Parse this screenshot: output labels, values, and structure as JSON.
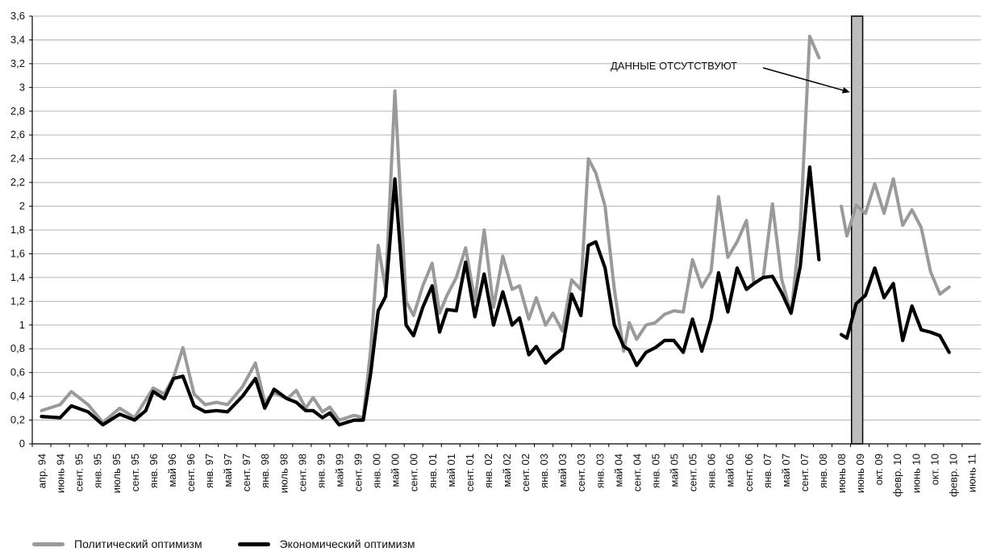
{
  "chart_data": {
    "type": "line",
    "title": "",
    "xlabel": "",
    "ylabel": "",
    "ylim": [
      0,
      3.6
    ],
    "yticks": [
      "0",
      "0,2",
      "0,4",
      "0,6",
      "0,8",
      "1",
      "1,2",
      "1,4",
      "1,6",
      "1,8",
      "2",
      "2,2",
      "2,4",
      "2,6",
      "2,8",
      "3",
      "3,2",
      "3,4",
      "3,6"
    ],
    "xticks": [
      "апр. 94",
      "июнь 94",
      "сент. 95",
      "янв. 95",
      "июль 95",
      "сент. 95",
      "янв. 96",
      "май 96",
      "сент. 96",
      "янв. 97",
      "май 97",
      "сент. 97",
      "янв. 98",
      "июль 98",
      "сент. 98",
      "янв. 99",
      "май 99",
      "сент. 99",
      "янв. 00",
      "май 00",
      "сент. 00",
      "янв. 01",
      "май 01",
      "сент. 01",
      "янв. 02",
      "май 02",
      "сент. 02",
      "янв. 03",
      "май 03",
      "сент. 03",
      "янв. 03",
      "май 04",
      "сент. 04",
      "янв. 05",
      "май 05",
      "сент. 05",
      "янв. 06",
      "май 06",
      "сент. 06",
      "янв. 07",
      "май 07",
      "сент. 07",
      "янв. 08",
      "июнь 08",
      "июнь 09",
      "окт. 09",
      "февр. 10",
      "июнь 10",
      "окт. 10",
      "февр. 10",
      "июнь 11"
    ],
    "grid": true,
    "legend_position": "bottom-left",
    "annotation": "ДАННЫЕ  ОТСУТСТВУЮТ",
    "gap_region": [
      "июнь 08",
      "июнь 09"
    ],
    "series": [
      {
        "name": "Политический оптимизм",
        "color": "#9a9a9a",
        "points": [
          [
            0,
            0.28
          ],
          [
            1,
            0.33
          ],
          [
            1.6,
            0.44
          ],
          [
            2.5,
            0.33
          ],
          [
            3.3,
            0.18
          ],
          [
            4.2,
            0.3
          ],
          [
            5,
            0.22
          ],
          [
            6,
            0.47
          ],
          [
            6.6,
            0.42
          ],
          [
            7.1,
            0.56
          ],
          [
            7.6,
            0.81
          ],
          [
            8.2,
            0.42
          ],
          [
            8.8,
            0.33
          ],
          [
            9.4,
            0.35
          ],
          [
            10,
            0.33
          ],
          [
            10.8,
            0.48
          ],
          [
            11.5,
            0.68
          ],
          [
            12,
            0.35
          ],
          [
            12.5,
            0.43
          ],
          [
            13.2,
            0.38
          ],
          [
            13.7,
            0.45
          ],
          [
            14.2,
            0.3
          ],
          [
            14.6,
            0.39
          ],
          [
            15.1,
            0.27
          ],
          [
            15.5,
            0.31
          ],
          [
            16,
            0.2
          ],
          [
            16.8,
            0.24
          ],
          [
            17.3,
            0.22
          ],
          [
            17.7,
            0.8
          ],
          [
            18.1,
            1.67
          ],
          [
            18.5,
            1.3
          ],
          [
            19,
            2.97
          ],
          [
            19.6,
            1.2
          ],
          [
            20,
            1.08
          ],
          [
            20.5,
            1.33
          ],
          [
            21,
            1.52
          ],
          [
            21.4,
            1.1
          ],
          [
            21.8,
            1.25
          ],
          [
            22.3,
            1.4
          ],
          [
            22.8,
            1.65
          ],
          [
            23.3,
            1.2
          ],
          [
            23.8,
            1.8
          ],
          [
            24.3,
            1.15
          ],
          [
            24.8,
            1.58
          ],
          [
            25.3,
            1.3
          ],
          [
            25.7,
            1.33
          ],
          [
            26.2,
            1.05
          ],
          [
            26.6,
            1.23
          ],
          [
            27.1,
            1.0
          ],
          [
            27.5,
            1.1
          ],
          [
            28,
            0.95
          ],
          [
            28.5,
            1.38
          ],
          [
            29,
            1.3
          ],
          [
            29.4,
            2.4
          ],
          [
            29.8,
            2.28
          ],
          [
            30.3,
            2.0
          ],
          [
            30.8,
            1.3
          ],
          [
            31.3,
            0.78
          ],
          [
            31.6,
            1.02
          ],
          [
            32,
            0.88
          ],
          [
            32.5,
            1.0
          ],
          [
            33,
            1.02
          ],
          [
            33.5,
            1.09
          ],
          [
            34,
            1.12
          ],
          [
            34.5,
            1.11
          ],
          [
            35,
            1.55
          ],
          [
            35.5,
            1.32
          ],
          [
            36,
            1.45
          ],
          [
            36.4,
            2.08
          ],
          [
            36.9,
            1.57
          ],
          [
            37.4,
            1.7
          ],
          [
            37.9,
            1.88
          ],
          [
            38.3,
            1.35
          ],
          [
            38.8,
            1.4
          ],
          [
            39.3,
            2.02
          ],
          [
            39.8,
            1.38
          ],
          [
            40.3,
            1.1
          ],
          [
            40.8,
            1.82
          ],
          [
            41.3,
            3.43
          ],
          [
            41.8,
            3.25
          ],
          null,
          [
            43,
            2.0
          ],
          [
            43.3,
            1.75
          ],
          [
            43.8,
            2.01
          ],
          [
            44.3,
            1.94
          ],
          [
            44.8,
            2.19
          ],
          [
            45.3,
            1.94
          ],
          [
            45.8,
            2.23
          ],
          [
            46.3,
            1.84
          ],
          [
            46.8,
            1.97
          ],
          [
            47.3,
            1.82
          ],
          [
            47.8,
            1.45
          ],
          [
            48.3,
            1.26
          ],
          [
            48.8,
            1.32
          ]
        ]
      },
      {
        "name": "Экономический оптимизм",
        "color": "#000000",
        "points": [
          [
            0,
            0.23
          ],
          [
            1,
            0.22
          ],
          [
            1.6,
            0.32
          ],
          [
            2.5,
            0.27
          ],
          [
            3.3,
            0.16
          ],
          [
            4.2,
            0.25
          ],
          [
            5,
            0.2
          ],
          [
            5.6,
            0.28
          ],
          [
            6,
            0.44
          ],
          [
            6.6,
            0.38
          ],
          [
            7.1,
            0.55
          ],
          [
            7.6,
            0.57
          ],
          [
            8.2,
            0.32
          ],
          [
            8.8,
            0.27
          ],
          [
            9.4,
            0.28
          ],
          [
            10,
            0.27
          ],
          [
            10.8,
            0.4
          ],
          [
            11.5,
            0.55
          ],
          [
            12,
            0.3
          ],
          [
            12.5,
            0.46
          ],
          [
            13.2,
            0.38
          ],
          [
            13.7,
            0.35
          ],
          [
            14.2,
            0.28
          ],
          [
            14.6,
            0.28
          ],
          [
            15.1,
            0.22
          ],
          [
            15.5,
            0.26
          ],
          [
            16,
            0.16
          ],
          [
            16.8,
            0.2
          ],
          [
            17.3,
            0.2
          ],
          [
            17.7,
            0.6
          ],
          [
            18.1,
            1.12
          ],
          [
            18.5,
            1.24
          ],
          [
            19,
            2.23
          ],
          [
            19.6,
            1.0
          ],
          [
            20,
            0.91
          ],
          [
            20.5,
            1.15
          ],
          [
            21,
            1.33
          ],
          [
            21.4,
            0.94
          ],
          [
            21.8,
            1.13
          ],
          [
            22.3,
            1.12
          ],
          [
            22.8,
            1.53
          ],
          [
            23.3,
            1.07
          ],
          [
            23.8,
            1.43
          ],
          [
            24.3,
            1.0
          ],
          [
            24.8,
            1.28
          ],
          [
            25.3,
            1.0
          ],
          [
            25.7,
            1.06
          ],
          [
            26.2,
            0.75
          ],
          [
            26.6,
            0.82
          ],
          [
            27.1,
            0.68
          ],
          [
            27.5,
            0.74
          ],
          [
            28,
            0.8
          ],
          [
            28.5,
            1.26
          ],
          [
            29,
            1.08
          ],
          [
            29.4,
            1.67
          ],
          [
            29.8,
            1.7
          ],
          [
            30.3,
            1.48
          ],
          [
            30.8,
            1.0
          ],
          [
            31.3,
            0.82
          ],
          [
            31.6,
            0.79
          ],
          [
            32,
            0.66
          ],
          [
            32.5,
            0.77
          ],
          [
            33,
            0.81
          ],
          [
            33.5,
            0.87
          ],
          [
            34,
            0.87
          ],
          [
            34.5,
            0.77
          ],
          [
            35,
            1.05
          ],
          [
            35.5,
            0.78
          ],
          [
            36,
            1.05
          ],
          [
            36.4,
            1.44
          ],
          [
            36.9,
            1.11
          ],
          [
            37.4,
            1.48
          ],
          [
            37.9,
            1.3
          ],
          [
            38.3,
            1.35
          ],
          [
            38.8,
            1.4
          ],
          [
            39.3,
            1.41
          ],
          [
            39.8,
            1.27
          ],
          [
            40.3,
            1.1
          ],
          [
            40.8,
            1.5
          ],
          [
            41.3,
            2.33
          ],
          [
            41.8,
            1.55
          ],
          null,
          [
            43,
            0.92
          ],
          [
            43.3,
            0.89
          ],
          [
            43.8,
            1.18
          ],
          [
            44.3,
            1.25
          ],
          [
            44.8,
            1.48
          ],
          [
            45.3,
            1.23
          ],
          [
            45.8,
            1.35
          ],
          [
            46.3,
            0.87
          ],
          [
            46.8,
            1.16
          ],
          [
            47.3,
            0.96
          ],
          [
            47.8,
            0.94
          ],
          [
            48.3,
            0.91
          ],
          [
            48.8,
            0.77
          ]
        ]
      }
    ]
  }
}
